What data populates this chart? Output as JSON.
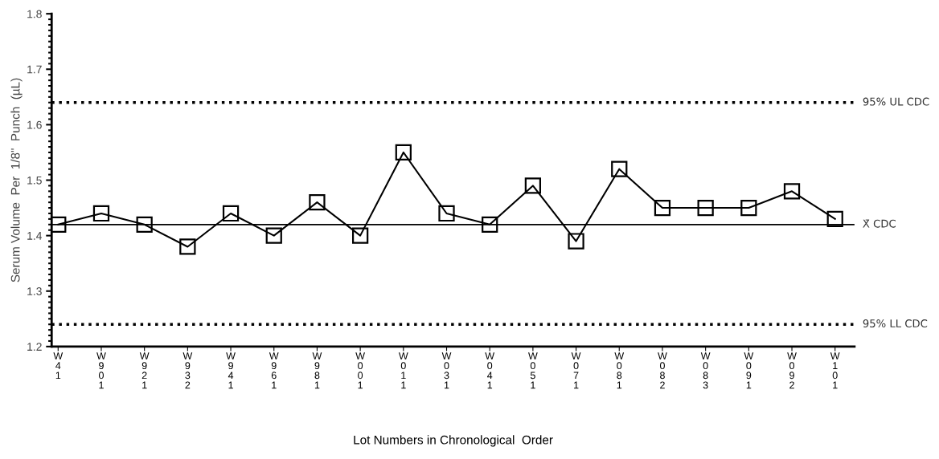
{
  "chart_data": {
    "type": "line",
    "xlabel": "Lot Numbers in Chronological  Order",
    "ylabel": "Serum Volume  Per  1/8\"  Punch  (µL)",
    "categories": [
      "W\n4\n1",
      "W\n9\n0\n1",
      "W\n9\n2\n1",
      "W\n9\n3\n2",
      "W\n9\n4\n1",
      "W\n9\n6\n1",
      "W\n9\n8\n1",
      "W\n0\n0\n1",
      "W\n0\n1\n1",
      "W\n0\n3\n1",
      "W\n0\n4\n1",
      "W\n0\n5\n1",
      "W\n0\n7\n1",
      "W\n0\n8\n1",
      "W\n0\n8\n2",
      "W\n0\n8\n3",
      "W\n0\n9\n1",
      "W\n0\n9\n2",
      "W\n1\n0\n1"
    ],
    "series": [
      {
        "color": "#000000",
        "values": [
          1.42,
          1.44,
          1.42,
          1.38,
          1.44,
          1.4,
          1.46,
          1.4,
          1.55,
          1.44,
          1.42,
          1.49,
          1.39,
          1.52,
          1.45,
          1.45,
          1.45,
          1.48,
          1.43
        ]
      }
    ],
    "marker": "square",
    "line_style": "solid",
    "ylim": [
      1.2,
      1.8
    ],
    "yticks": [
      1.2,
      1.3,
      1.4,
      1.5,
      1.6,
      1.7,
      1.8
    ],
    "grid": false,
    "ref_lines": [
      {
        "axis": "y",
        "value": 1.64,
        "label": "95% UL CDC",
        "line_style": "dotted",
        "color": "#000000"
      },
      {
        "axis": "y",
        "value": 1.42,
        "label": "X̄ CDC",
        "line_style": "solid",
        "color": "#000000"
      },
      {
        "axis": "y",
        "value": 1.24,
        "label": "95% LL CDC",
        "line_style": "dotted",
        "color": "#000000"
      }
    ]
  }
}
